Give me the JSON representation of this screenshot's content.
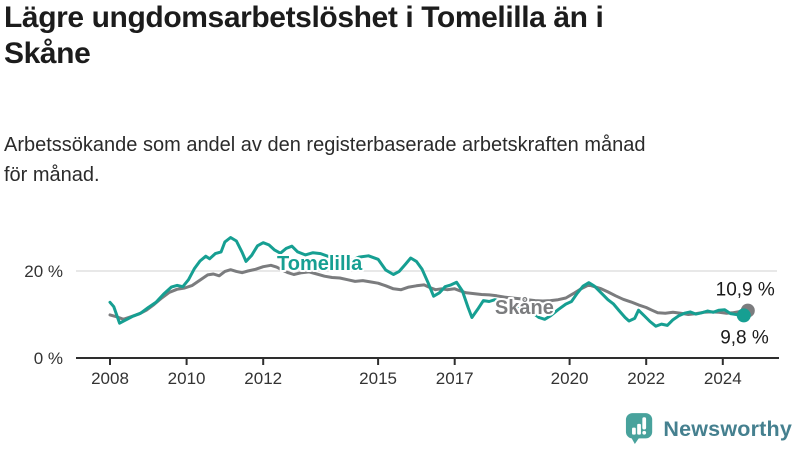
{
  "header": {
    "title_lines": [
      "Lägre ungdomsarbetslöshet i Tomelilla än i",
      "Skåne"
    ],
    "subtitle_lines": [
      "Arbetssökande som andel av den registerbaserade arbetskraften månad",
      "för månad."
    ]
  },
  "chart_data": {
    "type": "line",
    "title": "Lägre ungdomsarbetslöshet i Tomelilla än i Skåne",
    "subtitle": "Arbetssökande som andel av den registerbaserade arbetskraften månad för månad.",
    "xlabel": "",
    "ylabel": "",
    "unit": "%",
    "grid": "horizontal gridline at 20% only",
    "legend_position": "inline labels on lines",
    "xlim": [
      2007.9,
      2025.5
    ],
    "ylim": [
      0,
      32
    ],
    "x_ticks": [
      2008,
      2010,
      2012,
      2015,
      2017,
      2020,
      2022,
      2024
    ],
    "y_ticks": [
      {
        "value": 0,
        "label": "0 %"
      },
      {
        "value": 20,
        "label": "20 %"
      }
    ],
    "series": [
      {
        "name": "Skåne",
        "color": "#7b7c7e",
        "end_value": 10.9,
        "end_label": "10,9 %",
        "end_label_dx": 27,
        "end_label_dy": -15,
        "dot_dx": 2,
        "dot_r": 7,
        "line_label": {
          "t": 2018.05,
          "value": 10.1
        },
        "x": [
          2008.0,
          2008.2,
          2008.35,
          2008.55,
          2008.75,
          2008.95,
          2009.15,
          2009.35,
          2009.55,
          2009.75,
          2009.95,
          2010.15,
          2010.35,
          2010.55,
          2010.7,
          2010.85,
          2011.0,
          2011.15,
          2011.3,
          2011.45,
          2011.6,
          2011.8,
          2012.0,
          2012.2,
          2012.35,
          2012.5,
          2012.65,
          2012.8,
          2013.0,
          2013.2,
          2013.4,
          2013.6,
          2013.8,
          2014.0,
          2014.2,
          2014.4,
          2014.6,
          2014.8,
          2015.0,
          2015.2,
          2015.4,
          2015.6,
          2015.8,
          2016.0,
          2016.2,
          2016.35,
          2016.5,
          2016.65,
          2016.8,
          2017.0,
          2017.15,
          2017.3,
          2017.5,
          2017.7,
          2017.9,
          2018.1,
          2018.3,
          2018.5,
          2018.7,
          2018.9,
          2019.1,
          2019.3,
          2019.5,
          2019.7,
          2019.9,
          2020.1,
          2020.3,
          2020.5,
          2020.65,
          2020.8,
          2021.0,
          2021.2,
          2021.4,
          2021.6,
          2021.8,
          2022.0,
          2022.15,
          2022.3,
          2022.5,
          2022.7,
          2022.9,
          2023.1,
          2023.3,
          2023.5,
          2023.7,
          2023.9,
          2024.1,
          2024.25,
          2024.4,
          2024.6
        ],
        "values": [
          9.9,
          9.4,
          8.9,
          9.5,
          10.1,
          11.0,
          12.3,
          13.8,
          15.1,
          15.8,
          16.1,
          16.7,
          17.9,
          19.1,
          19.3,
          18.9,
          19.9,
          20.3,
          19.9,
          19.6,
          20.0,
          20.4,
          21.0,
          21.3,
          20.9,
          20.2,
          19.6,
          19.2,
          19.6,
          19.8,
          19.3,
          18.8,
          18.5,
          18.4,
          18.0,
          17.6,
          17.8,
          17.5,
          17.2,
          16.6,
          15.9,
          15.7,
          16.3,
          16.6,
          16.8,
          16.2,
          15.7,
          15.9,
          15.7,
          15.9,
          15.4,
          15.0,
          14.8,
          14.6,
          14.5,
          14.3,
          14.0,
          13.8,
          13.6,
          13.4,
          13.2,
          13.1,
          13.2,
          13.4,
          13.8,
          14.8,
          15.9,
          16.8,
          16.4,
          16.0,
          15.2,
          14.3,
          13.5,
          12.9,
          12.2,
          11.6,
          11.0,
          10.4,
          10.3,
          10.5,
          10.3,
          10.0,
          10.2,
          10.5,
          10.6,
          10.5,
          10.3,
          10.4,
          10.6,
          10.9
        ]
      },
      {
        "name": "Tomelilla",
        "color": "#169f92",
        "end_value": 9.8,
        "end_label": "9,8 %",
        "end_label_dx": 25,
        "end_label_dy": 28,
        "dot_dx": -2,
        "dot_r": 7,
        "line_label": {
          "t": 2012.36,
          "value": 20.2
        },
        "x": [
          2008.0,
          2008.1,
          2008.25,
          2008.4,
          2008.6,
          2008.8,
          2009.0,
          2009.2,
          2009.4,
          2009.6,
          2009.75,
          2009.9,
          2010.05,
          2010.2,
          2010.35,
          2010.5,
          2010.6,
          2010.75,
          2010.9,
          2011.0,
          2011.15,
          2011.3,
          2011.45,
          2011.55,
          2011.7,
          2011.85,
          2012.0,
          2012.15,
          2012.3,
          2012.45,
          2012.6,
          2012.75,
          2012.9,
          2013.1,
          2013.3,
          2013.5,
          2013.75,
          2014.0,
          2014.25,
          2014.5,
          2014.75,
          2015.0,
          2015.2,
          2015.4,
          2015.55,
          2015.7,
          2015.85,
          2016.0,
          2016.15,
          2016.3,
          2016.45,
          2016.6,
          2016.75,
          2016.9,
          2017.05,
          2017.2,
          2017.35,
          2017.45,
          2017.6,
          2017.75,
          2017.9,
          2018.05,
          2018.25,
          2018.45,
          2018.65,
          2018.85,
          2019.05,
          2019.2,
          2019.35,
          2019.5,
          2019.7,
          2019.9,
          2020.05,
          2020.2,
          2020.35,
          2020.5,
          2020.65,
          2020.8,
          2021.0,
          2021.15,
          2021.3,
          2021.45,
          2021.55,
          2021.7,
          2021.8,
          2021.95,
          2022.1,
          2022.25,
          2022.4,
          2022.55,
          2022.7,
          2022.85,
          2023.0,
          2023.15,
          2023.3,
          2023.45,
          2023.6,
          2023.75,
          2023.9,
          2024.05,
          2024.2,
          2024.35,
          2024.5,
          2024.6
        ],
        "values": [
          12.8,
          11.8,
          8.0,
          8.7,
          9.6,
          10.3,
          11.6,
          12.8,
          14.7,
          16.3,
          16.7,
          16.4,
          18.0,
          20.5,
          22.3,
          23.4,
          22.8,
          24.0,
          24.4,
          26.7,
          27.7,
          26.9,
          24.3,
          22.2,
          23.6,
          25.8,
          26.5,
          26.0,
          24.8,
          24.1,
          25.2,
          25.7,
          24.4,
          23.7,
          24.2,
          24.0,
          23.2,
          23.0,
          22.2,
          23.2,
          23.5,
          22.7,
          20.2,
          19.2,
          19.9,
          21.4,
          23.0,
          22.2,
          20.4,
          17.4,
          14.2,
          15.0,
          16.4,
          16.8,
          17.4,
          15.4,
          11.6,
          9.3,
          11.2,
          13.2,
          13.0,
          13.4,
          12.9,
          12.3,
          11.9,
          11.3,
          10.3,
          9.3,
          8.9,
          9.7,
          11.1,
          12.4,
          13.0,
          14.9,
          16.5,
          17.3,
          16.5,
          15.2,
          13.4,
          12.4,
          10.8,
          9.3,
          8.5,
          9.1,
          11.0,
          9.7,
          8.4,
          7.3,
          7.8,
          7.5,
          8.8,
          9.7,
          10.3,
          10.6,
          10.1,
          10.4,
          10.8,
          10.5,
          11.0,
          11.1,
          10.2,
          10.0,
          9.6,
          9.8
        ]
      }
    ],
    "style": {
      "gridline_color": "#d9d9d9",
      "axis_color": "#2e2e2e",
      "tick_label_color": "#333333",
      "end_label_color": "#1a1a1a"
    }
  },
  "branding": {
    "logo_text": "Newsworthy",
    "icon": "bar-chart-speech-bubble-icon",
    "icon_color": "#48a29c",
    "text_color": "#45808f"
  }
}
